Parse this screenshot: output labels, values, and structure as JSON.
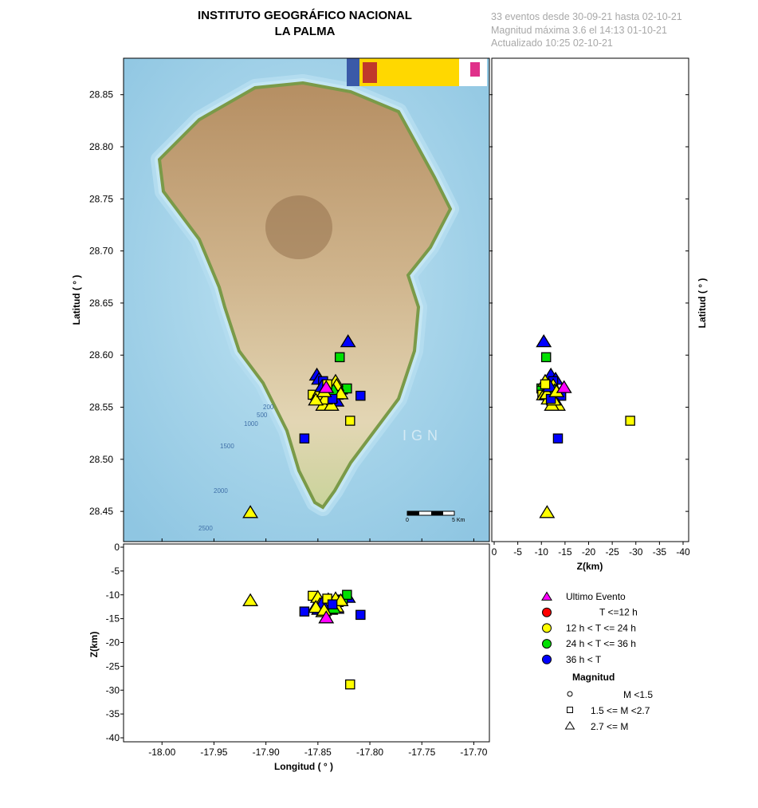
{
  "header": {
    "title": "INSTITUTO GEOGRÁFICO NACIONAL",
    "subtitle": "LA PALMA",
    "info": [
      "33 eventos desde 30-09-21 hasta 02-10-21",
      "Magnitud máxima 3.6 el 14:13 01-10-21",
      "Actualizado   10:25  02-10-21"
    ]
  },
  "map": {
    "watermark": "IGN",
    "contour_labels": [
      "200",
      "500",
      "1000",
      "1500",
      "2000",
      "2500"
    ],
    "scale_bar": {
      "start": "0",
      "end": "5 Km"
    },
    "sea_color": "#a9d4ea",
    "land_color": "#d9c6a0"
  },
  "colors": {
    "ultimo": "#ff00ff",
    "t12": "#ff0000",
    "t24": "#ffff00",
    "t36": "#00e000",
    "t_old": "#0000ff"
  },
  "legend": {
    "items": [
      {
        "label": "Ultimo Evento",
        "key": "ultimo",
        "shape": "triangle"
      },
      {
        "label": "T <=12 h",
        "key": "t12",
        "shape": "circle"
      },
      {
        "label": "12 h  < T <= 24 h",
        "key": "t24",
        "shape": "circle"
      },
      {
        "label": "24 h  < T <= 36 h",
        "key": "t36",
        "shape": "circle"
      },
      {
        "label": "36 h <  T",
        "key": "t_old",
        "shape": "circle"
      }
    ],
    "magnitude_title": "Magnitud",
    "magnitudes": [
      {
        "label": "M <1.5",
        "shape": "circle"
      },
      {
        "label": "1.5 <= M <2.7",
        "shape": "square"
      },
      {
        "label": "2.7 <= M",
        "shape": "triangle"
      }
    ]
  },
  "chart_data": {
    "type": "scatter",
    "map_panel": {
      "ylabel": "Latitud ( ° )",
      "xlim": [
        -18.037,
        -17.685
      ],
      "ylim": [
        28.421,
        28.885
      ],
      "yticks": [
        "28.45",
        "28.50",
        "28.55",
        "28.60",
        "28.65",
        "28.70",
        "28.75",
        "28.80",
        "28.85"
      ]
    },
    "depth_lat_panel": {
      "xlabel": "Z(km)",
      "ylabel": "Latitud ( ° )",
      "xlim": [
        0.5,
        -41
      ],
      "xticks": [
        "0",
        "-5",
        "-10",
        "-15",
        "-20",
        "-25",
        "-30",
        "-35",
        "-40"
      ]
    },
    "lon_depth_panel": {
      "xlabel": "Longitud ( ° )",
      "ylabel": "Z(km)",
      "ylim": [
        -41,
        0.5
      ],
      "xticks": [
        "-18.00",
        "-17.95",
        "-17.90",
        "-17.85",
        "-17.80",
        "-17.75",
        "-17.70"
      ],
      "yticks": [
        "0",
        "-5",
        "-10",
        "-15",
        "-20",
        "-25",
        "-30",
        "-35",
        "-40"
      ]
    },
    "events": [
      {
        "lon": -17.821,
        "lat": 28.613,
        "depth": -10.5,
        "mag": "triangle",
        "c": "t_old"
      },
      {
        "lon": -17.829,
        "lat": 28.598,
        "depth": -11,
        "mag": "square",
        "c": "t36"
      },
      {
        "lon": -17.809,
        "lat": 28.561,
        "depth": -14.2,
        "mag": "square",
        "c": "t_old"
      },
      {
        "lon": -17.819,
        "lat": 28.537,
        "depth": -28.8,
        "mag": "square",
        "c": "t24"
      },
      {
        "lon": -17.863,
        "lat": 28.52,
        "depth": -13.5,
        "mag": "square",
        "c": "t_old"
      },
      {
        "lon": -17.915,
        "lat": 28.449,
        "depth": -11.2,
        "mag": "triangle",
        "c": "t24"
      },
      {
        "lon": -17.851,
        "lat": 28.581,
        "depth": -12,
        "mag": "triangle",
        "c": "t_old"
      },
      {
        "lon": -17.849,
        "lat": 28.577,
        "depth": -13,
        "mag": "triangle",
        "c": "t_old"
      },
      {
        "lon": -17.845,
        "lat": 28.575,
        "depth": -12.5,
        "mag": "square",
        "c": "t_old"
      },
      {
        "lon": -17.836,
        "lat": 28.568,
        "depth": -12.3,
        "mag": "square",
        "c": "t36"
      },
      {
        "lon": -17.826,
        "lat": 28.567,
        "depth": -11,
        "mag": "square",
        "c": "t36"
      },
      {
        "lon": -17.822,
        "lat": 28.568,
        "depth": -10,
        "mag": "square",
        "c": "t36"
      },
      {
        "lon": -17.83,
        "lat": 28.562,
        "depth": -11.5,
        "mag": "square",
        "c": "t36"
      },
      {
        "lon": -17.832,
        "lat": 28.556,
        "depth": -12.8,
        "mag": "triangle",
        "c": "t_old"
      },
      {
        "lon": -17.838,
        "lat": 28.56,
        "depth": -11.8,
        "mag": "triangle",
        "c": "t36"
      },
      {
        "lon": -17.833,
        "lat": 28.575,
        "depth": -10.8,
        "mag": "triangle",
        "c": "t24"
      },
      {
        "lon": -17.832,
        "lat": 28.571,
        "depth": -12.5,
        "mag": "triangle",
        "c": "t24"
      },
      {
        "lon": -17.855,
        "lat": 28.562,
        "depth": -10.2,
        "mag": "square",
        "c": "t24"
      },
      {
        "lon": -17.85,
        "lat": 28.562,
        "depth": -10.5,
        "mag": "triangle",
        "c": "t24"
      },
      {
        "lon": -17.848,
        "lat": 28.566,
        "depth": -12,
        "mag": "triangle",
        "c": "t24"
      },
      {
        "lon": -17.84,
        "lat": 28.562,
        "depth": -11,
        "mag": "triangle",
        "c": "t24"
      },
      {
        "lon": -17.838,
        "lat": 28.565,
        "depth": -13,
        "mag": "triangle",
        "c": "t24"
      },
      {
        "lon": -17.845,
        "lat": 28.552,
        "depth": -13.5,
        "mag": "triangle",
        "c": "t24"
      },
      {
        "lon": -17.837,
        "lat": 28.552,
        "depth": -12.2,
        "mag": "triangle",
        "c": "t24"
      },
      {
        "lon": -17.843,
        "lat": 28.558,
        "depth": -11.5,
        "mag": "triangle",
        "c": "t24"
      },
      {
        "lon": -17.835,
        "lat": 28.566,
        "depth": -12.8,
        "mag": "triangle",
        "c": "t36"
      },
      {
        "lon": -17.828,
        "lat": 28.563,
        "depth": -11.2,
        "mag": "triangle",
        "c": "t24"
      },
      {
        "lon": -17.846,
        "lat": 28.57,
        "depth": -11.8,
        "mag": "triangle",
        "c": "t_old"
      },
      {
        "lon": -17.841,
        "lat": 28.572,
        "depth": -10.8,
        "mag": "square",
        "c": "t24"
      },
      {
        "lon": -17.852,
        "lat": 28.557,
        "depth": -12.6,
        "mag": "triangle",
        "c": "t24"
      },
      {
        "lon": -17.836,
        "lat": 28.558,
        "depth": -12.0,
        "mag": "square",
        "c": "t_old"
      },
      {
        "lon": -17.844,
        "lat": 28.565,
        "depth": -13.2,
        "mag": "triangle",
        "c": "t24"
      },
      {
        "lon": -17.842,
        "lat": 28.569,
        "depth": -14.8,
        "mag": "triangle",
        "c": "ultimo"
      }
    ]
  }
}
